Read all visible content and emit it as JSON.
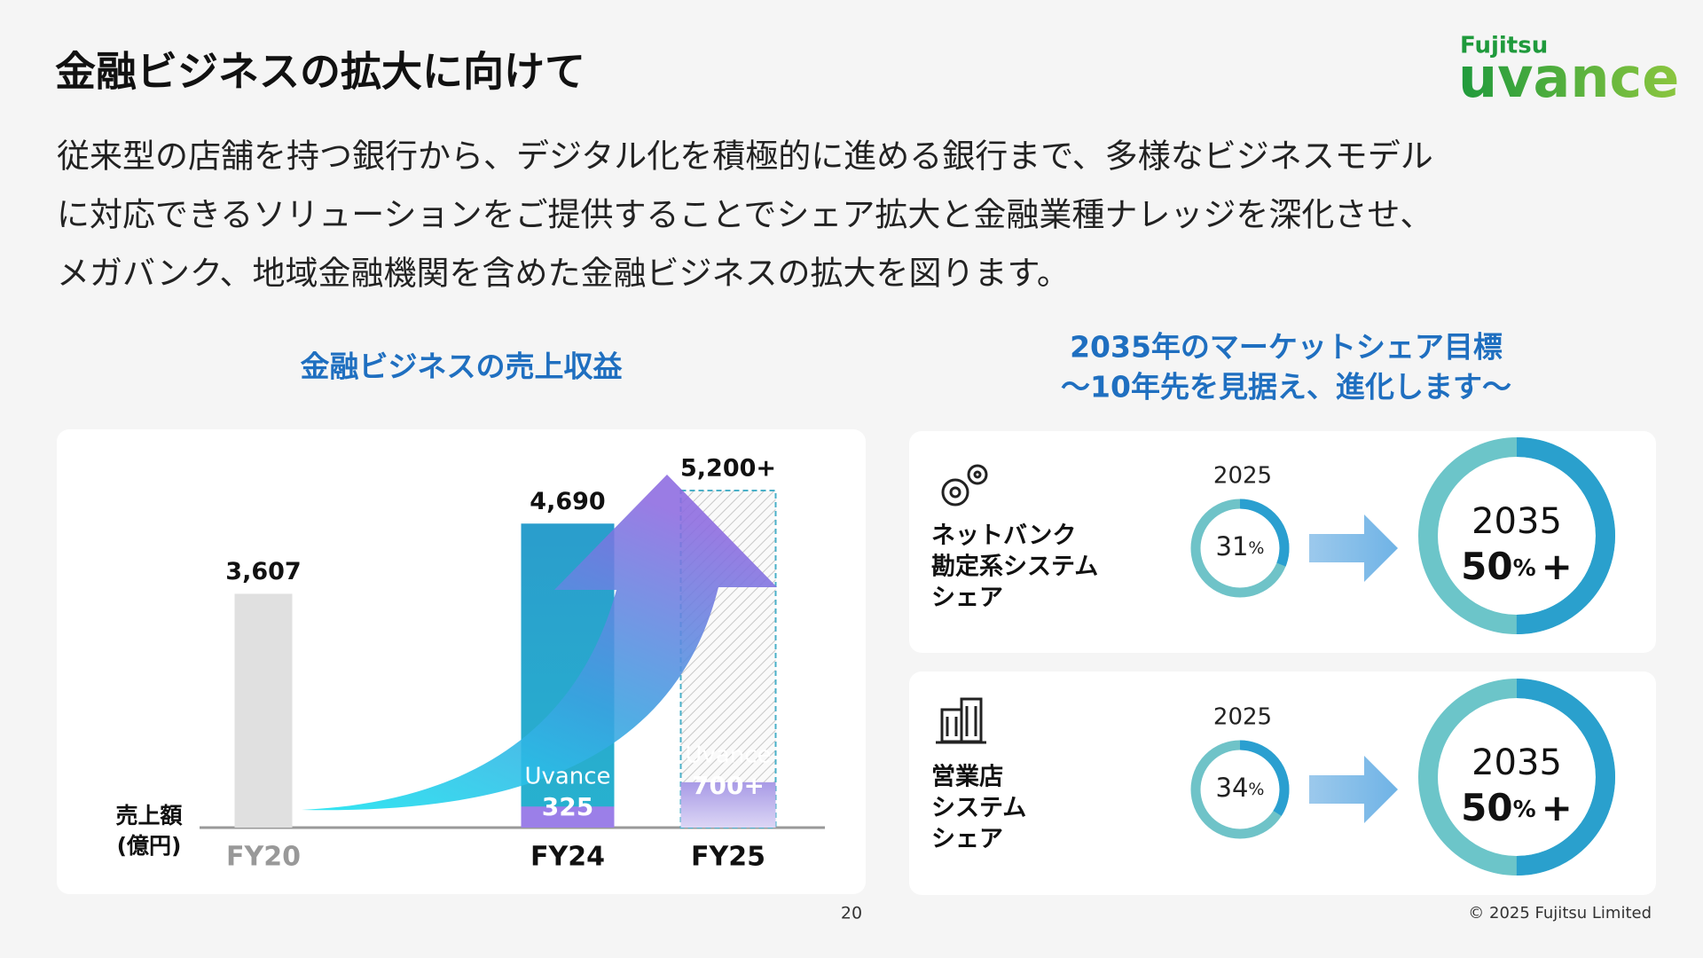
{
  "header": {
    "title": "金融ビジネスの拡大に向けて",
    "brand": "Fujitsu",
    "logo": "uvance"
  },
  "intro": [
    "従来型の店舗を持つ銀行から、デジタル化を積極的に進める銀行まで、多様なビジネスモデル",
    "に対応できるソリューションをご提供することでシェア拡大と金融業種ナレッジを深化させ、",
    "メガバンク、地域金融機関を含めた金融ビジネスの拡大を図ります。"
  ],
  "chart_data": {
    "type": "bar",
    "title": "金融ビジネスの売上収益",
    "y_label": [
      "売上額",
      "(億円)"
    ],
    "categories": [
      "FY20",
      "FY24",
      "FY25"
    ],
    "values": [
      3607,
      4690,
      5200
    ],
    "value_labels": [
      "3,607",
      "4,690",
      "5,200+"
    ],
    "segment": {
      "name": "Uvance",
      "values": [
        null,
        325,
        700
      ],
      "value_labels": [
        null,
        "325",
        "700+"
      ]
    }
  },
  "share": {
    "title": [
      "2035年のマーケットシェア目標",
      "〜10年先を見据え、進化します〜"
    ],
    "rows": [
      {
        "label": [
          "ネットバンク",
          "勘定系システム",
          "シェア"
        ],
        "current": {
          "year": "2025",
          "value": 31,
          "unit": "%"
        },
        "target": {
          "year": "2035",
          "value": 50,
          "unit": "%",
          "suffix": "+"
        }
      },
      {
        "label": [
          "営業店",
          "システム",
          "シェア"
        ],
        "current": {
          "year": "2025",
          "value": 34,
          "unit": "%"
        },
        "target": {
          "year": "2035",
          "value": 50,
          "unit": "%",
          "suffix": "+"
        }
      }
    ]
  },
  "footer": {
    "page": "20",
    "copyright": "© 2025 Fujitsu Limited"
  }
}
